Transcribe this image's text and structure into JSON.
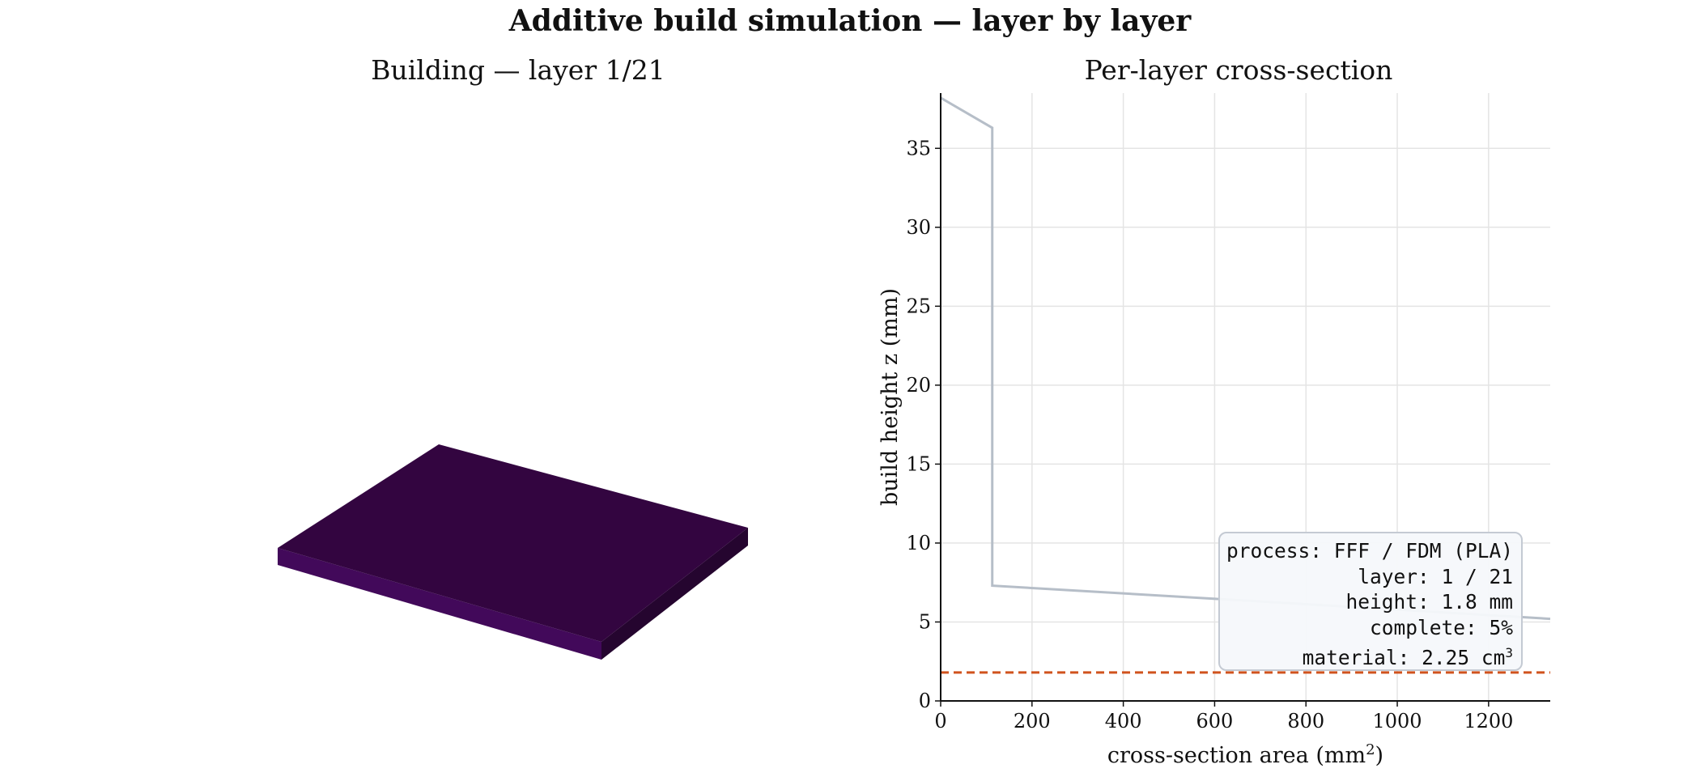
{
  "suptitle": "Additive build simulation — layer by layer",
  "left_panel": {
    "title": "Building — layer 1/21",
    "slab_colors": {
      "top": "#330540",
      "front": "#42095a",
      "side": "#25052f"
    }
  },
  "chart_data": {
    "type": "line",
    "title": "Per-layer cross-section",
    "xlabel": "cross-section area (mm",
    "xlabel_sup": "2",
    "xlabel_end": ")",
    "ylabel": "build height z (mm)",
    "xlim": [
      0,
      1335
    ],
    "ylim": [
      0,
      38.5
    ],
    "xticks": [
      0,
      200,
      400,
      600,
      800,
      1000,
      1200
    ],
    "yticks": [
      0,
      5,
      10,
      15,
      20,
      25,
      30,
      35
    ],
    "grid": true,
    "series": [
      {
        "color": "#b6bec8",
        "points": [
          [
            0,
            38.2
          ],
          [
            113,
            36.3
          ],
          [
            113,
            7.3
          ],
          [
            700,
            6.3
          ],
          [
            1335,
            5.2
          ]
        ]
      }
    ],
    "current_layer_height": 1.8,
    "current_layer_color": "#d0531e"
  },
  "info": {
    "process": "process: FFF / FDM (PLA)",
    "layer": "layer: 1 / 21",
    "height": "height: 1.8 mm",
    "complete": "complete: 5%",
    "material": "material: 2.25 cm",
    "material_sup": "3"
  }
}
